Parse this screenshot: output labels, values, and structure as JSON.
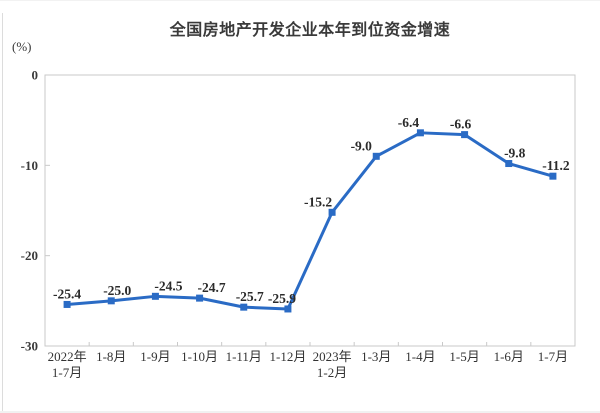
{
  "chart_data": {
    "type": "line",
    "title": "全国房地产开发企业本年到位资金增速",
    "unit_label": "(%)",
    "categories": [
      [
        "2022年",
        "1-7月"
      ],
      [
        "1-8月"
      ],
      [
        "1-9月"
      ],
      [
        "1-10月"
      ],
      [
        "1-11月"
      ],
      [
        "1-12月"
      ],
      [
        "2023年",
        "1-2月"
      ],
      [
        "1-3月"
      ],
      [
        "1-4月"
      ],
      [
        "1-5月"
      ],
      [
        "1-6月"
      ],
      [
        "1-7月"
      ]
    ],
    "values": [
      -25.4,
      -25.0,
      -24.5,
      -24.7,
      -25.7,
      -25.9,
      -15.2,
      -9.0,
      -6.4,
      -6.6,
      -9.8,
      -11.2
    ],
    "point_labels": [
      "-25.4",
      "-25.0",
      "-24.5",
      "-24.7",
      "-25.7",
      "-25.9",
      "-15.2",
      "-9.0",
      "-6.4",
      "-6.6",
      "-9.8",
      "-11.2"
    ],
    "y_ticks": [
      0,
      -10,
      -20,
      -30
    ],
    "y_tick_labels": [
      "0",
      "-10",
      "-20",
      "-30"
    ],
    "ylim": [
      -30,
      0
    ],
    "grid": false,
    "legend": false,
    "marker": "square",
    "line_color": "#2A6BC5",
    "axis_color": "#c9c9c9",
    "label_color": "#2b2b2b",
    "title_color": "#3a3a3a",
    "label_dx": [
      0,
      6,
      13,
      12,
      6,
      -6,
      -14,
      -15,
      -12,
      -4,
      6,
      3
    ]
  }
}
